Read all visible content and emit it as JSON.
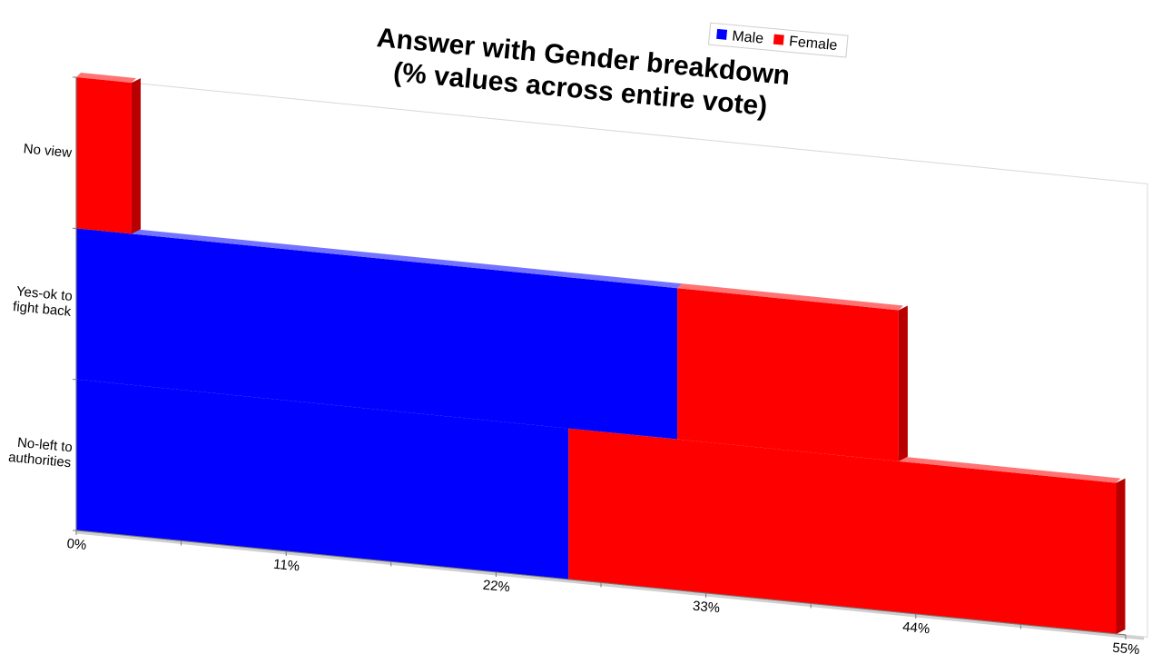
{
  "chart_data": {
    "type": "bar",
    "orientation": "horizontal",
    "stacked": true,
    "title": [
      "Answer with Gender breakdown",
      "(% values across entire vote)"
    ],
    "categories": [
      "No view",
      "Yes-ok to fight back",
      "No-left to authorities"
    ],
    "category_label_lines": [
      [
        "No view"
      ],
      [
        "Yes-ok to",
        "fight back"
      ],
      [
        "No-left to",
        "authorities"
      ]
    ],
    "series": [
      {
        "name": "Male",
        "color": "#0000ff",
        "values": [
          0,
          31.5,
          25.8
        ]
      },
      {
        "name": "Female",
        "color": "#ff0000",
        "values": [
          2.9,
          11.6,
          28.7
        ]
      }
    ],
    "xlim": [
      0,
      55
    ],
    "x_ticks": [
      0,
      11,
      22,
      33,
      44,
      55
    ],
    "x_tick_labels": [
      "0%",
      "11%",
      "22%",
      "33%",
      "44%",
      "55%"
    ],
    "legend": {
      "placement": "top",
      "items": [
        "Male",
        "Female"
      ]
    },
    "grid": false
  }
}
